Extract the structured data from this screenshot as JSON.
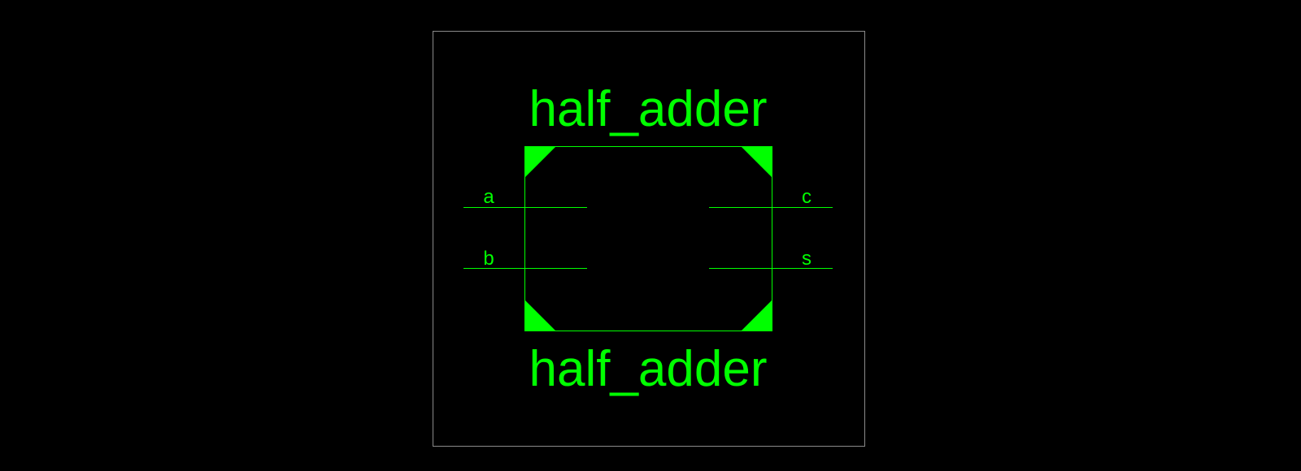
{
  "symbol": {
    "name_top": "half_adder",
    "name_bottom": "half_adder",
    "color": "#00ff00",
    "frame_color": "#8a8a8a",
    "background": "#000000"
  },
  "pins": {
    "inputs": [
      {
        "name": "a"
      },
      {
        "name": "b"
      }
    ],
    "outputs": [
      {
        "name": "c"
      },
      {
        "name": "s"
      }
    ]
  }
}
